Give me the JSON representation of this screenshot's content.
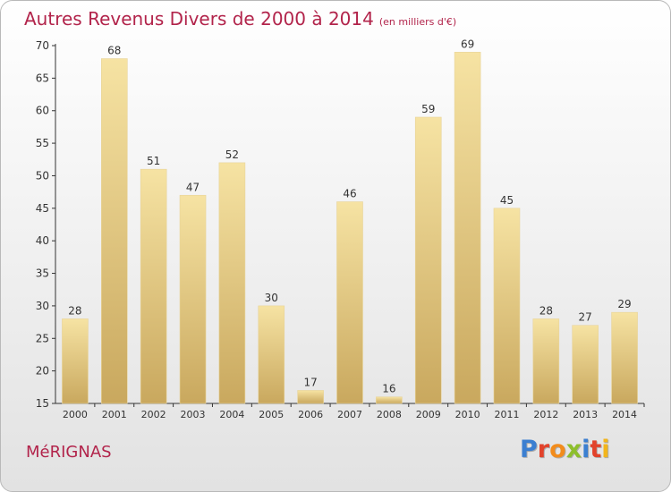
{
  "header": {
    "title": "Autres Revenus Divers de 2000 à 2014",
    "unit": "(en milliers d'€)"
  },
  "footer": {
    "commune": "MéRIGNAS",
    "logo_text": "Proxiti",
    "logo_colors": [
      "#3b7fd1",
      "#e2422b",
      "#f28c1c",
      "#8dbf2c",
      "#3b7fd1",
      "#e2422b",
      "#f2b51c"
    ]
  },
  "colors": {
    "title": "#b2244b",
    "bar_light": "#f6e3a3",
    "bar_dark": "#c9a85e"
  },
  "chart_data": {
    "type": "bar",
    "title": "Autres Revenus Divers de 2000 à 2014",
    "subtitle": "(en milliers d'€)",
    "xlabel": "",
    "ylabel": "",
    "categories": [
      "2000",
      "2001",
      "2002",
      "2003",
      "2004",
      "2005",
      "2006",
      "2007",
      "2008",
      "2009",
      "2010",
      "2011",
      "2012",
      "2013",
      "2014"
    ],
    "values": [
      28,
      68,
      51,
      47,
      52,
      30,
      17,
      46,
      16,
      59,
      69,
      45,
      28,
      27,
      29
    ],
    "ylim": [
      15,
      70
    ],
    "yticks": [
      15,
      20,
      25,
      30,
      35,
      40,
      45,
      50,
      55,
      60,
      65,
      70
    ],
    "grid": false,
    "data_labels": true
  }
}
